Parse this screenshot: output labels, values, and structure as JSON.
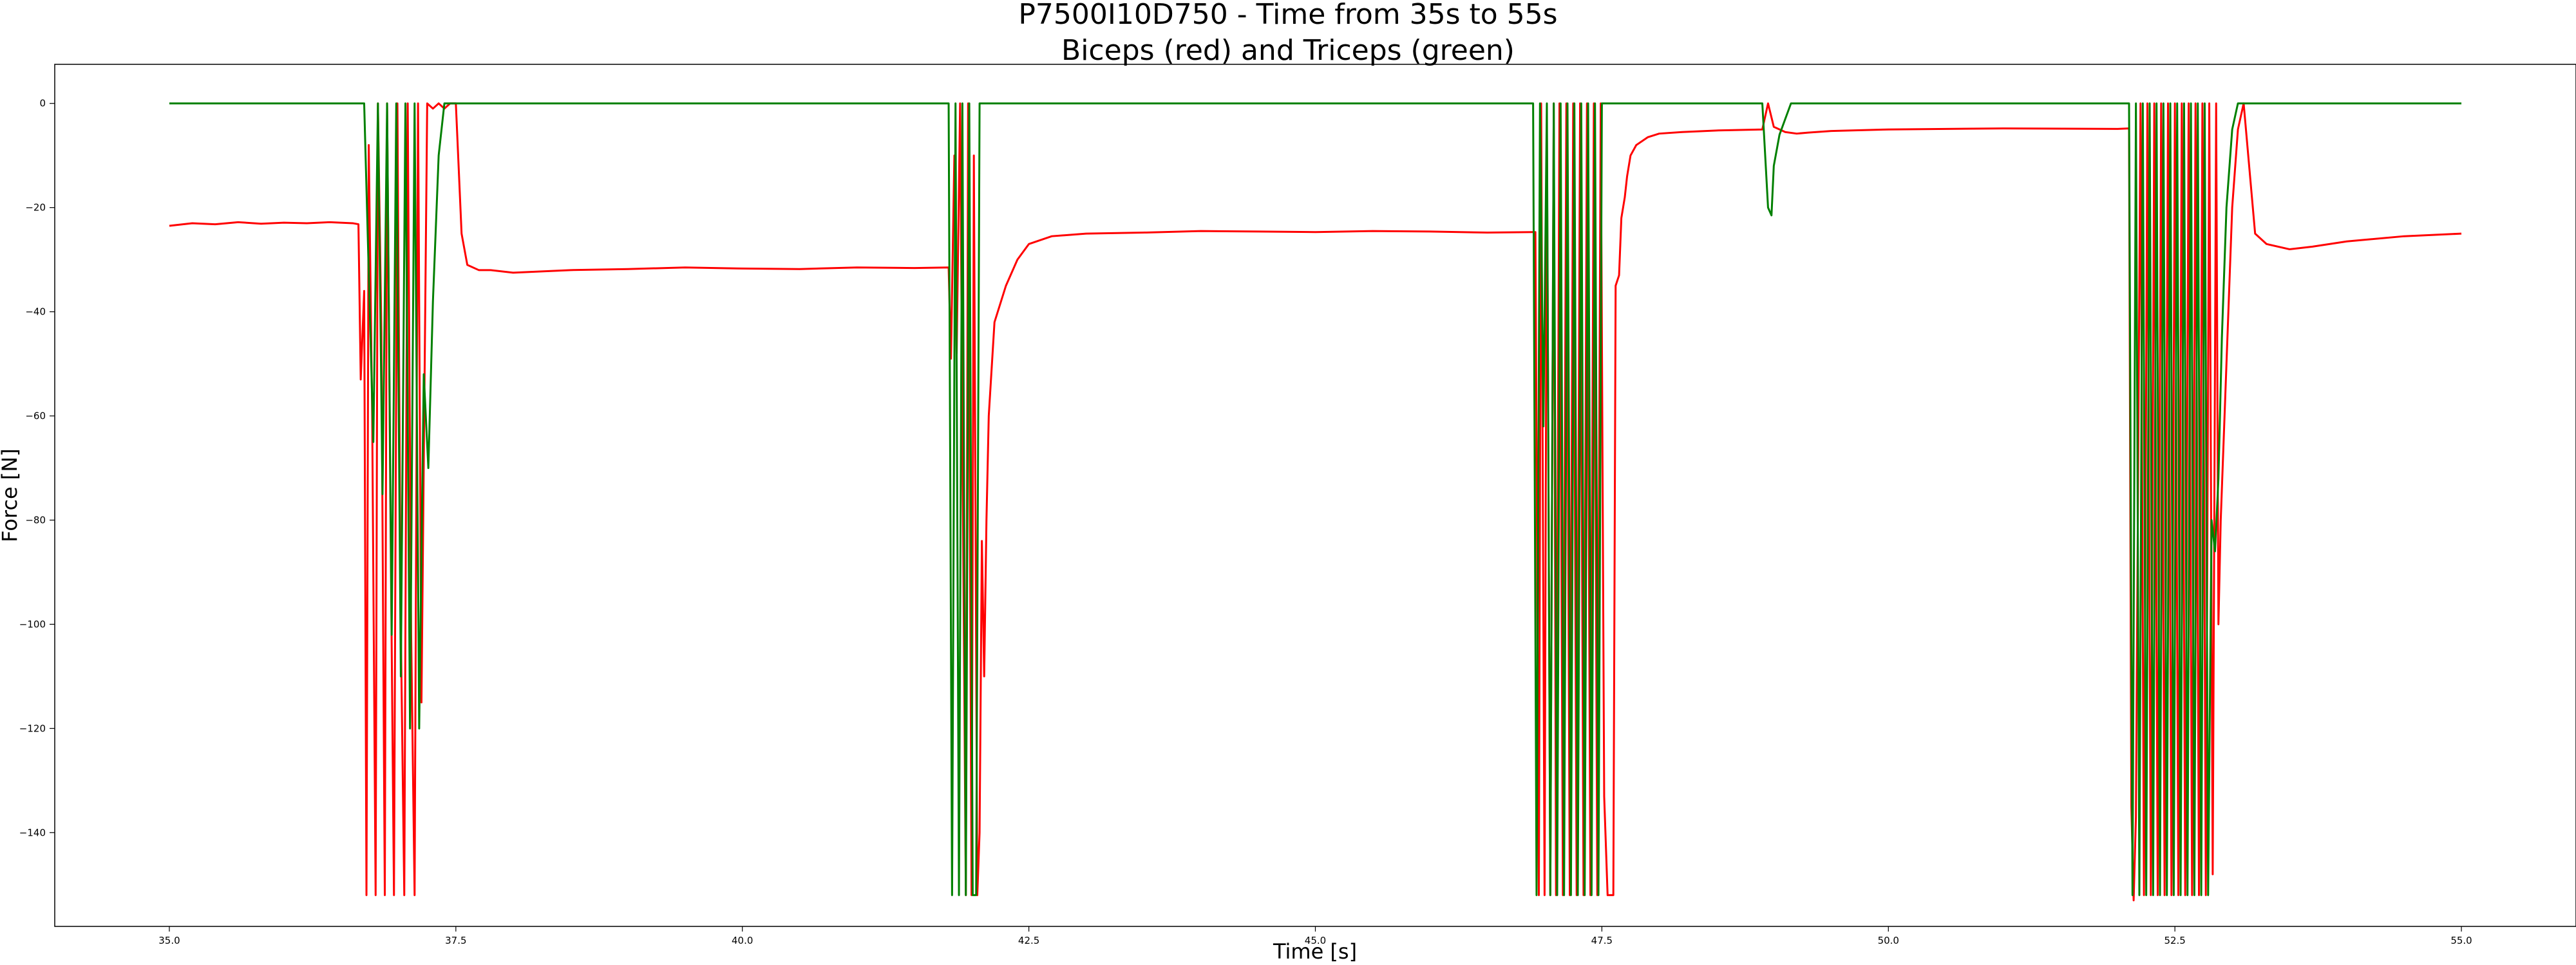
{
  "chart_data": {
    "type": "line",
    "title": "P7500I10D750 - Time from 35s to 55s",
    "subtitle": "Biceps (red) and Triceps (green)",
    "xlabel": "Time [s]",
    "ylabel": "Force [N]",
    "xlim": [
      34.0,
      56.0
    ],
    "ylim": [
      -158,
      7.5
    ],
    "xticks": [
      35.0,
      37.5,
      40.0,
      42.5,
      45.0,
      47.5,
      50.0,
      52.5,
      55.0
    ],
    "xtick_labels": [
      "35.0",
      "37.5",
      "40.0",
      "42.5",
      "45.0",
      "47.5",
      "50.0",
      "52.5",
      "55.0"
    ],
    "yticks": [
      0,
      -20,
      -40,
      -60,
      -80,
      -100,
      -120,
      -140
    ],
    "ytick_labels": [
      "0",
      "−20",
      "−40",
      "−60",
      "−80",
      "−100",
      "−120",
      "−140"
    ],
    "grid": false,
    "series": [
      {
        "color": "#ff0000",
        "x": [
          35.0,
          35.2,
          35.4,
          35.6,
          35.8,
          36.0,
          36.2,
          36.4,
          36.6,
          36.65,
          36.67,
          36.7,
          36.72,
          36.74,
          36.77,
          36.8,
          36.82,
          36.85,
          36.88,
          36.9,
          36.93,
          36.96,
          36.99,
          37.02,
          37.05,
          37.08,
          37.11,
          37.14,
          37.17,
          37.2,
          37.25,
          37.3,
          37.35,
          37.4,
          37.45,
          37.5,
          37.55,
          37.6,
          37.7,
          37.8,
          38.0,
          38.5,
          39.0,
          39.5,
          40.0,
          40.5,
          41.0,
          41.5,
          41.8,
          41.82,
          41.85,
          41.87,
          41.9,
          41.92,
          41.95,
          41.97,
          42.0,
          42.02,
          42.05,
          42.07,
          42.09,
          42.11,
          42.13,
          42.15,
          42.2,
          42.3,
          42.4,
          42.5,
          42.7,
          43.0,
          43.5,
          44.0,
          44.5,
          45.0,
          45.5,
          46.0,
          46.5,
          46.9,
          46.92,
          46.95,
          46.97,
          47.0,
          47.02,
          47.05,
          47.08,
          47.1,
          47.13,
          47.16,
          47.19,
          47.22,
          47.25,
          47.28,
          47.31,
          47.34,
          47.37,
          47.4,
          47.43,
          47.46,
          47.49,
          47.52,
          47.55,
          47.58,
          47.6,
          47.62,
          47.65,
          47.67,
          47.7,
          47.72,
          47.75,
          47.8,
          47.9,
          48.0,
          48.2,
          48.5,
          48.9,
          48.95,
          49.0,
          49.1,
          49.2,
          49.3,
          49.5,
          50.0,
          51.0,
          52.0,
          52.1,
          52.12,
          52.14,
          52.16,
          52.2,
          52.23,
          52.26,
          52.29,
          52.32,
          52.35,
          52.38,
          52.41,
          52.44,
          52.47,
          52.5,
          52.53,
          52.56,
          52.59,
          52.62,
          52.65,
          52.68,
          52.71,
          52.74,
          52.77,
          52.8,
          52.83,
          52.86,
          52.88,
          52.9,
          52.95,
          53.0,
          53.05,
          53.1,
          53.2,
          53.3,
          53.5,
          53.7,
          54.0,
          54.5,
          55.0
        ],
        "y": [
          -23.5,
          -23.0,
          -23.2,
          -22.8,
          -23.1,
          -22.9,
          -23.0,
          -22.8,
          -23.0,
          -23.2,
          -53,
          -36,
          -152,
          -8,
          -60,
          -152,
          0,
          -44,
          -152,
          0,
          -80,
          -152,
          0,
          -101,
          -152,
          0,
          -102,
          -152,
          0,
          -115,
          0,
          -1,
          0,
          -1,
          0,
          0,
          -25,
          -31,
          -32,
          -32,
          -32.5,
          -32.0,
          -31.8,
          -31.5,
          -31.7,
          -31.8,
          -31.5,
          -31.6,
          -31.5,
          -49,
          -10,
          -48,
          0,
          -63,
          -152,
          0,
          -152,
          -10,
          -152,
          -140,
          -84,
          -110,
          -80,
          -60,
          -42,
          -35,
          -30,
          -27,
          -25.5,
          -25.0,
          -24.8,
          -24.5,
          -24.6,
          -24.7,
          -24.5,
          -24.6,
          -24.8,
          -24.7,
          -24.7,
          -152,
          0,
          -152,
          -5,
          -152,
          0,
          -152,
          0,
          -152,
          0,
          -152,
          0,
          -152,
          0,
          -152,
          0,
          -152,
          0,
          -152,
          0,
          -133,
          -152,
          -152,
          -152,
          -35,
          -33,
          -22,
          -18,
          -14,
          -10,
          -8,
          -6.5,
          -5.8,
          -5.5,
          -5.2,
          -5.0,
          0,
          -4.5,
          -5.5,
          -5.8,
          -5.6,
          -5.3,
          -5.0,
          -4.8,
          -4.9,
          -4.8,
          -135,
          -153,
          -137,
          0,
          -152,
          0,
          -152,
          0,
          -152,
          0,
          -152,
          0,
          -152,
          0,
          -152,
          0,
          -152,
          0,
          -152,
          0,
          -152,
          0,
          -152,
          0,
          -148,
          0,
          -100,
          -80,
          -50,
          -20,
          -5,
          0,
          -25,
          -27,
          -28,
          -27.5,
          -26.5,
          -25.5,
          -25.0
        ]
      },
      {
        "color": "#008000",
        "x": [
          35.0,
          36.7,
          36.78,
          36.82,
          36.86,
          36.9,
          36.94,
          36.98,
          37.02,
          37.06,
          37.1,
          37.14,
          37.18,
          37.22,
          37.26,
          37.3,
          37.35,
          37.4,
          37.5,
          37.6,
          41.8,
          41.83,
          41.86,
          41.89,
          41.92,
          41.95,
          41.98,
          42.01,
          42.04,
          42.07,
          42.1,
          46.9,
          46.93,
          46.96,
          46.99,
          47.02,
          47.05,
          47.08,
          47.11,
          47.14,
          47.17,
          47.2,
          47.23,
          47.26,
          47.29,
          47.32,
          47.35,
          47.38,
          47.41,
          47.44,
          47.47,
          47.5,
          47.55,
          47.6,
          48.9,
          48.95,
          48.98,
          49.0,
          49.05,
          49.1,
          49.15,
          49.2,
          49.3,
          52.1,
          52.13,
          52.16,
          52.19,
          52.22,
          52.25,
          52.28,
          52.31,
          52.34,
          52.37,
          52.4,
          52.43,
          52.46,
          52.49,
          52.52,
          52.55,
          52.58,
          52.61,
          52.64,
          52.67,
          52.7,
          52.73,
          52.76,
          52.79,
          52.82,
          52.85,
          52.88,
          52.91,
          52.95,
          53.0,
          53.05,
          53.1,
          53.15,
          53.2,
          55.0
        ],
        "y": [
          0,
          0,
          -65,
          0,
          -75,
          0,
          -102,
          0,
          -110,
          0,
          -120,
          0,
          -120,
          -52,
          -70,
          -38,
          -10,
          0,
          0,
          0,
          0,
          -152,
          0,
          -152,
          0,
          -152,
          0,
          -152,
          -152,
          0,
          0,
          0,
          -152,
          0,
          -62,
          0,
          -152,
          0,
          -152,
          0,
          -152,
          0,
          -152,
          0,
          -152,
          0,
          -152,
          0,
          -152,
          0,
          -152,
          0,
          0,
          0,
          0,
          -20,
          -21.5,
          -12,
          -6,
          -3,
          0,
          0,
          0,
          0,
          -152,
          0,
          -152,
          0,
          -152,
          0,
          -152,
          0,
          -152,
          0,
          -152,
          0,
          -152,
          0,
          -152,
          0,
          -152,
          0,
          -152,
          0,
          -152,
          0,
          -152,
          -80,
          -86,
          -72,
          -45,
          -20,
          -5,
          0,
          0,
          0,
          0,
          0
        ]
      }
    ]
  }
}
